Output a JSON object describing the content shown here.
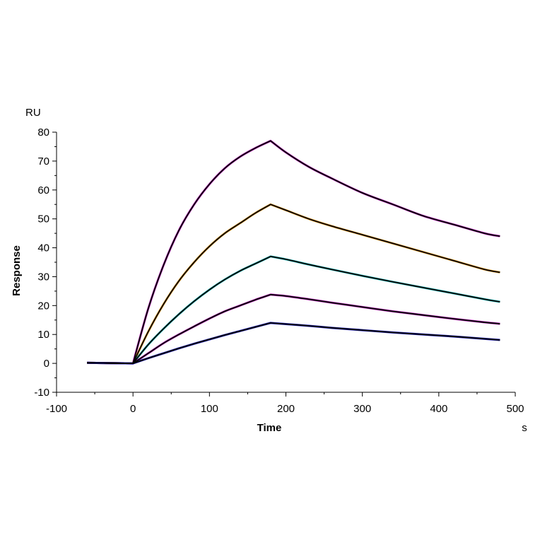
{
  "chart_data": {
    "type": "line",
    "xlabel": "Time",
    "ylabel": "Response",
    "x_unit": "s",
    "y_unit": "RU",
    "xlim": [
      -100,
      500
    ],
    "ylim": [
      -10,
      80
    ],
    "x_ticks": [
      -100,
      0,
      100,
      200,
      300,
      400,
      500
    ],
    "y_ticks": [
      -10,
      0,
      10,
      20,
      30,
      40,
      50,
      60,
      70,
      80
    ],
    "grid": false,
    "series": [
      {
        "color": "#c020c0",
        "x": [
          -60,
          0,
          20,
          40,
          60,
          80,
          100,
          120,
          140,
          160,
          180,
          200,
          230,
          260,
          300,
          340,
          380,
          420,
          460,
          480
        ],
        "values": [
          0.2,
          0,
          19,
          34,
          46,
          55,
          62,
          67.5,
          71.5,
          74.5,
          77,
          73,
          68,
          64,
          59,
          55,
          51,
          48,
          45,
          44
        ]
      },
      {
        "color": "#f0a020",
        "x": [
          -60,
          0,
          20,
          40,
          60,
          80,
          100,
          120,
          140,
          160,
          180,
          200,
          230,
          260,
          300,
          340,
          380,
          420,
          460,
          480
        ],
        "values": [
          0.2,
          0,
          11,
          20.5,
          28.5,
          35,
          40.5,
          45,
          48.5,
          52,
          55,
          53,
          50,
          47.5,
          44.5,
          41.5,
          38.5,
          35.5,
          32.5,
          31.5
        ]
      },
      {
        "color": "#20c0c0",
        "x": [
          -60,
          0,
          20,
          40,
          60,
          80,
          100,
          120,
          140,
          160,
          180,
          200,
          230,
          260,
          300,
          340,
          380,
          420,
          460,
          480
        ],
        "values": [
          0.2,
          0,
          6.5,
          12,
          17,
          21.5,
          25.5,
          29,
          32,
          34.5,
          37,
          36,
          34.2,
          32.5,
          30.3,
          28.2,
          26.2,
          24.2,
          22.2,
          21.3
        ]
      },
      {
        "color": "#c020c0",
        "x": [
          -60,
          0,
          20,
          40,
          60,
          80,
          100,
          120,
          140,
          160,
          180,
          200,
          230,
          260,
          300,
          340,
          380,
          420,
          460,
          480
        ],
        "values": [
          0.2,
          0,
          3.5,
          7,
          10,
          12.8,
          15.5,
          18,
          20,
          22,
          23.8,
          23.3,
          22.2,
          21,
          19.5,
          18,
          16.7,
          15.4,
          14.2,
          13.7
        ]
      },
      {
        "color": "#2020c0",
        "x": [
          -60,
          0,
          20,
          40,
          60,
          80,
          100,
          120,
          140,
          160,
          180,
          200,
          230,
          260,
          300,
          340,
          380,
          420,
          460,
          480
        ],
        "values": [
          0.2,
          0,
          1.8,
          3.5,
          5.2,
          6.8,
          8.3,
          9.8,
          11.2,
          12.6,
          14,
          13.6,
          13,
          12.3,
          11.5,
          10.7,
          10,
          9.3,
          8.5,
          8.1
        ]
      }
    ],
    "fit_color": "#000000"
  }
}
